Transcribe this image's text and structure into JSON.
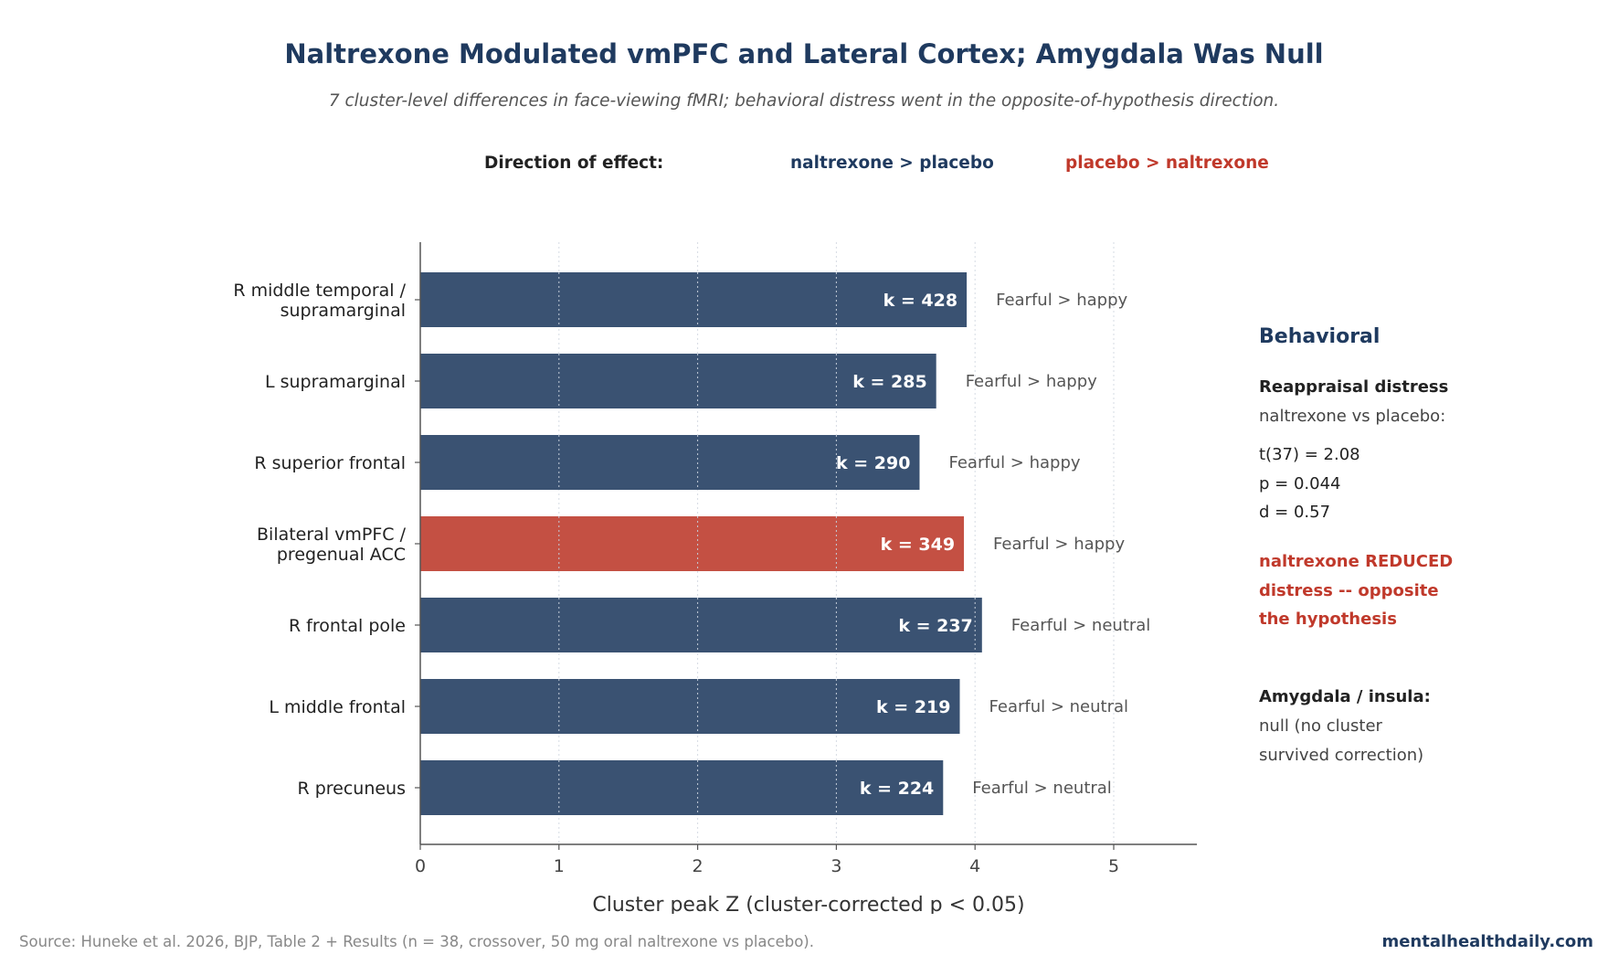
{
  "chart_data": {
    "type": "bar",
    "orientation": "horizontal",
    "title": "Naltrexone Modulated vmPFC and Lateral Cortex; Amygdala Was Null",
    "subtitle": "7 cluster-level differences in face-viewing fMRI; behavioral distress went in the opposite-of-hypothesis direction.",
    "xlabel": "Cluster peak Z (cluster-corrected p < 0.05)",
    "ylabel": "",
    "xlim": [
      0,
      5.6
    ],
    "xticks": [
      0,
      1,
      2,
      3,
      4,
      5
    ],
    "grid": "vertical dotted",
    "legend": {
      "heading": "Direction of effect:",
      "entries": [
        {
          "name": "naltrexone > placebo",
          "color": "#3a5272"
        },
        {
          "name": "placebo > naltrexone",
          "color": "#c45043"
        }
      ],
      "placement": "top"
    },
    "categories": [
      [
        "R middle temporal /",
        "supramarginal"
      ],
      [
        "L supramarginal"
      ],
      [
        "R superior frontal"
      ],
      [
        "Bilateral vmPFC /",
        "pregenual ACC"
      ],
      [
        "R frontal pole"
      ],
      [
        "L middle frontal"
      ],
      [
        "R precuneus"
      ]
    ],
    "values": [
      3.94,
      3.72,
      3.6,
      3.92,
      4.05,
      3.89,
      3.77
    ],
    "bar_labels": [
      "k = 428",
      "k = 285",
      "k = 290",
      "k = 349",
      "k = 237",
      "k = 219",
      "k = 224"
    ],
    "contrasts": [
      "Fearful > happy",
      "Fearful > happy",
      "Fearful > happy",
      "Fearful > happy",
      "Fearful > neutral",
      "Fearful > neutral",
      "Fearful > neutral"
    ],
    "directions": [
      "nal",
      "nal",
      "nal",
      "pla",
      "nal",
      "nal",
      "nal"
    ]
  },
  "sidebar": {
    "title": "Behavioral",
    "reappraisal_heading": "Reappraisal distress",
    "reappraisal_sub": "naltrexone vs placebo:",
    "stat_t": "t(37) = 2.08",
    "stat_p": "p = 0.044",
    "stat_d": "d = 0.57",
    "finding_lines": [
      "naltrexone REDUCED",
      "distress -- opposite",
      "the hypothesis"
    ],
    "amygdala_heading": "Amygdala / insula:",
    "amygdala_lines": [
      "null (no cluster",
      "survived correction)"
    ]
  },
  "footer": {
    "source": "Source: Huneke et al. 2026, BJP, Table 2 + Results (n = 38, crossover, 50 mg oral naltrexone vs placebo).",
    "brand": "mentalhealthdaily.com"
  }
}
